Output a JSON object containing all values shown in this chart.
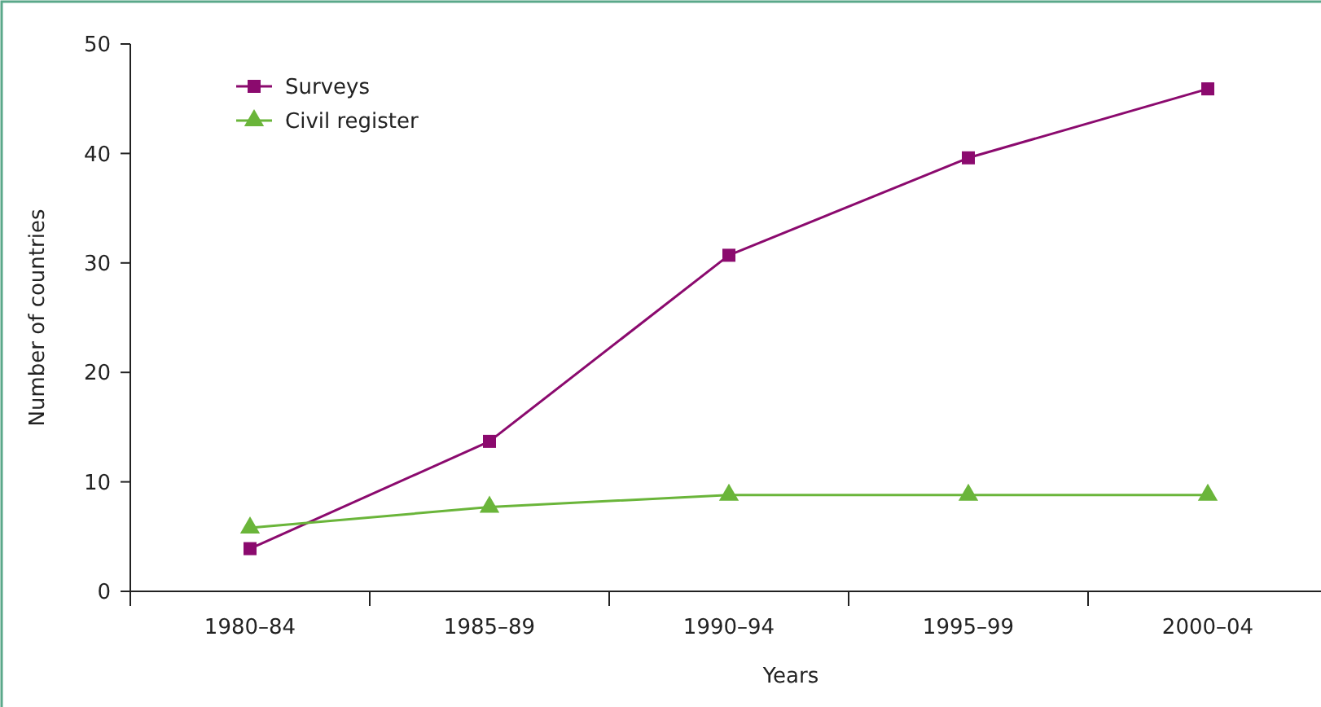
{
  "chart_data": {
    "type": "line",
    "xlabel": "Years",
    "ylabel": "Number of countries",
    "categories": [
      "1980–84",
      "1985–89",
      "1990–94",
      "1995–99",
      "2000–04"
    ],
    "series": [
      {
        "name": "Surveys",
        "color": "#8b0a6e",
        "marker": "square",
        "values": [
          3.9,
          13.7,
          30.7,
          39.6,
          45.9
        ]
      },
      {
        "name": "Civil register",
        "color": "#6ab53a",
        "marker": "triangle",
        "values": [
          5.8,
          7.7,
          8.8,
          8.8,
          8.8
        ]
      }
    ],
    "ylim": [
      0,
      50
    ],
    "yticks": [
      0,
      10,
      20,
      30,
      40,
      50
    ],
    "grid": false,
    "legend": "top left"
  }
}
